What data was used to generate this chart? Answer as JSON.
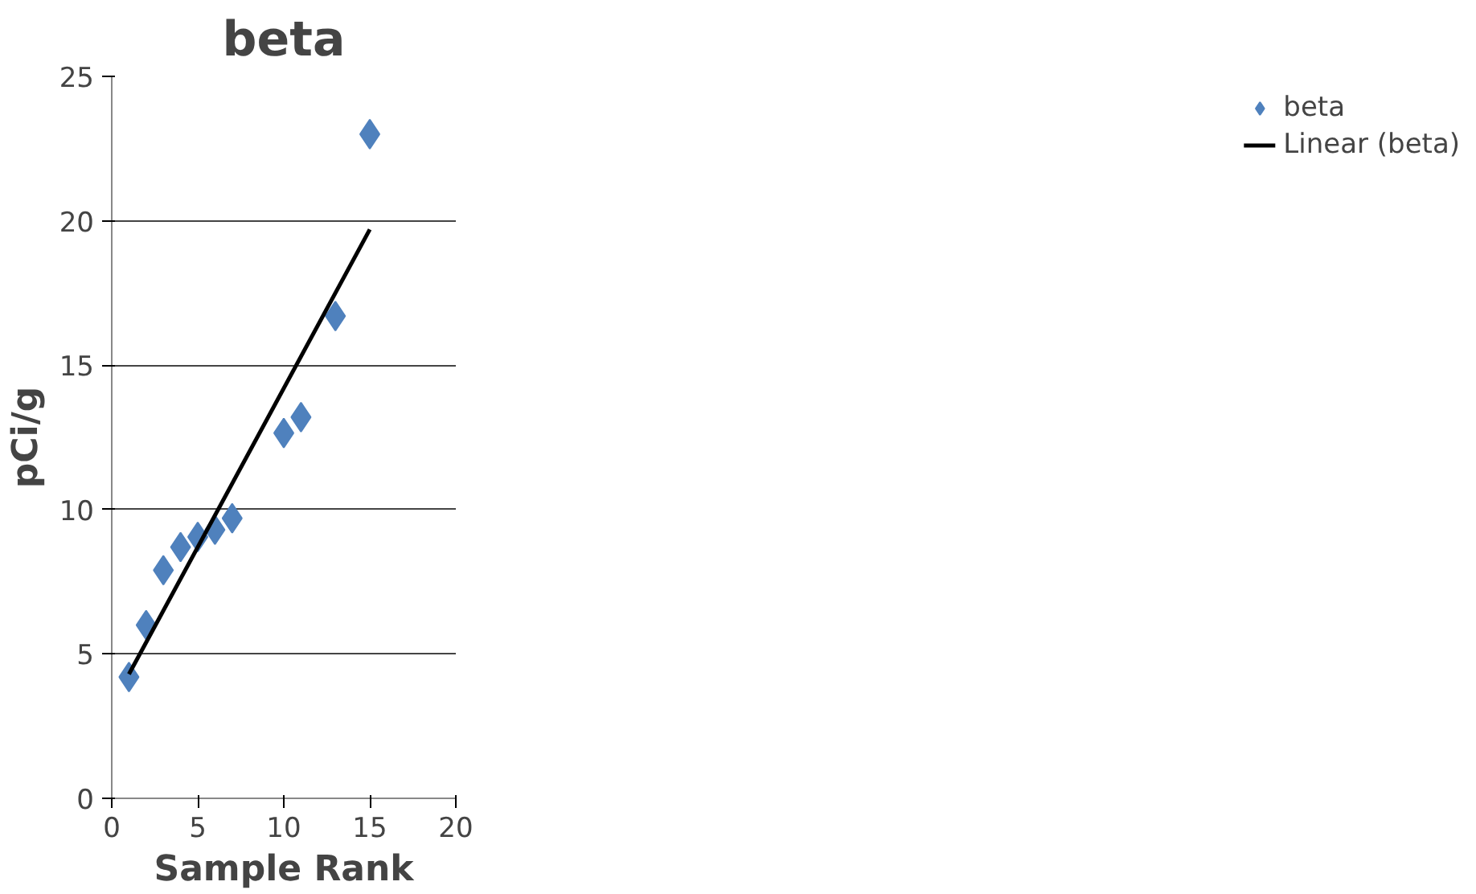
{
  "chart_data": {
    "type": "scatter",
    "title": "beta",
    "xlabel": "Sample Rank",
    "ylabel": "pCi/g",
    "xlim": [
      0,
      20
    ],
    "xticks": [
      0,
      5,
      10,
      15,
      20
    ],
    "ylim": [
      0,
      25
    ],
    "yticks": [
      0,
      5,
      10,
      15,
      20,
      25
    ],
    "grid": "y",
    "legend": "right",
    "marker": "diamond",
    "series": [
      {
        "name": "beta",
        "color": "#4f81bd",
        "x": [
          1,
          2,
          3,
          4,
          5,
          6,
          7,
          10,
          11,
          13,
          15
        ],
        "values": [
          4.2,
          6.0,
          7.9,
          8.7,
          9.05,
          9.3,
          9.7,
          12.65,
          13.2,
          16.7,
          23.0
        ]
      },
      {
        "name": "Linear (beta)",
        "type": "line",
        "color": "#000000",
        "x": [
          1,
          15
        ],
        "values": [
          4.3,
          19.7
        ],
        "marker": "none",
        "line_style": "solid"
      }
    ]
  }
}
